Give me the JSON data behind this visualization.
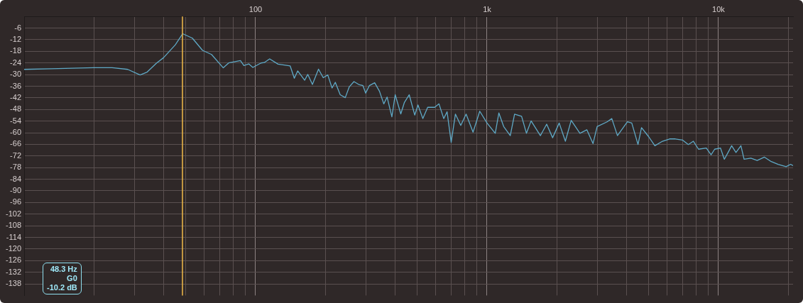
{
  "chart_data": {
    "type": "line",
    "log": "x",
    "grid": true,
    "marker": "none",
    "line_style": "solid",
    "x": [
      10,
      13.1,
      20,
      24,
      28,
      31.7,
      34,
      37.3,
      40,
      45,
      48.4,
      53.3,
      59,
      64.5,
      72.5,
      76.5,
      86,
      89,
      93.4,
      97.3,
      105.6,
      109,
      115,
      125,
      141,
      147,
      152,
      163,
      168,
      176,
      187,
      196,
      205,
      214,
      221,
      232,
      244,
      254,
      266,
      279,
      291,
      299,
      310,
      327,
      343,
      358,
      370,
      388,
      401,
      424,
      439,
      461,
      487,
      503,
      528,
      554,
      594,
      620,
      650,
      672,
      700,
      730,
      770,
      812,
      870,
      930,
      1000,
      1085,
      1125,
      1180,
      1260,
      1315,
      1410,
      1480,
      1550,
      1700,
      1810,
      1920,
      2050,
      2180,
      2310,
      2520,
      2700,
      2870,
      2990,
      3300,
      3460,
      3660,
      4040,
      4220,
      4490,
      4650,
      4990,
      5310,
      5730,
      6150,
      6510,
      7000,
      7410,
      7790,
      8200,
      8860,
      9290,
      9630,
      10200,
      10600,
      11000,
      11400,
      11900,
      12500,
      12900,
      13800,
      14700,
      15800,
      16900,
      18100,
      19600,
      20500,
      21000
    ],
    "series": [
      {
        "color": "#5fa9c6",
        "values": [
          -27.3,
          -27,
          -26.4,
          -26.4,
          -27.3,
          -30.2,
          -28.7,
          -24.1,
          -21.3,
          -14.6,
          -8.9,
          -11.2,
          -17.5,
          -19.6,
          -26.5,
          -24,
          -22.8,
          -25.3,
          -24.5,
          -26.3,
          -24,
          -23.8,
          -21.9,
          -24.6,
          -25.5,
          -31.9,
          -28.1,
          -32.9,
          -29.9,
          -35.1,
          -27.2,
          -31.6,
          -30.2,
          -36.9,
          -34,
          -40.4,
          -41.9,
          -36.3,
          -33.6,
          -35.1,
          -35.7,
          -39.6,
          -35.7,
          -34.2,
          -38.6,
          -45.1,
          -41.6,
          -51.8,
          -40.4,
          -50.3,
          -44.5,
          -40.4,
          -50.9,
          -45.7,
          -52.7,
          -46.9,
          -46.9,
          -45.1,
          -52.7,
          -49.2,
          -65,
          -50.4,
          -56.2,
          -50.4,
          -59.7,
          -48.9,
          -55,
          -60.3,
          -49.8,
          -56.8,
          -61.5,
          -50.4,
          -51.5,
          -60.3,
          -53.9,
          -61.5,
          -55.6,
          -62.6,
          -55,
          -64.4,
          -53.6,
          -60.3,
          -58.5,
          -65.6,
          -56.8,
          -54.4,
          -52.7,
          -61.5,
          -54.4,
          -55,
          -66.1,
          -57.4,
          -62,
          -66.7,
          -64.4,
          -63.2,
          -63.2,
          -63.8,
          -66.1,
          -64.4,
          -68.5,
          -67.9,
          -71.4,
          -68.5,
          -67.9,
          -73.7,
          -70.2,
          -66.7,
          -70.2,
          -66.7,
          -73.7,
          -73.1,
          -74.3,
          -72.6,
          -74.9,
          -76.3,
          -77.5,
          -76.3,
          -77
        ]
      }
    ],
    "xlim": [
      10,
      21000
    ],
    "xticks": [
      {
        "value": 20,
        "label": null
      },
      {
        "value": 30,
        "label": null
      },
      {
        "value": 40,
        "label": null
      },
      {
        "value": 50,
        "label": null
      },
      {
        "value": 60,
        "label": null
      },
      {
        "value": 70,
        "label": null
      },
      {
        "value": 80,
        "label": null
      },
      {
        "value": 90,
        "label": null
      },
      100,
      {
        "value": 200,
        "label": null
      },
      {
        "value": 300,
        "label": null
      },
      {
        "value": 400,
        "label": null
      },
      {
        "value": 500,
        "label": null
      },
      {
        "value": 600,
        "label": null
      },
      {
        "value": 700,
        "label": null
      },
      {
        "value": 800,
        "label": null
      },
      {
        "value": 900,
        "label": null
      },
      {
        "value": 1000,
        "label": "1k"
      },
      {
        "value": 2000,
        "label": null
      },
      {
        "value": 3000,
        "label": null
      },
      {
        "value": 4000,
        "label": null
      },
      {
        "value": 5000,
        "label": null
      },
      {
        "value": 6000,
        "label": null
      },
      {
        "value": 7000,
        "label": null
      },
      {
        "value": 8000,
        "label": null
      },
      {
        "value": 9000,
        "label": null
      },
      {
        "value": 10000,
        "label": "10k"
      },
      {
        "value": 20000,
        "label": null
      }
    ],
    "ylim": [
      -144,
      0
    ],
    "yticks": [
      -6,
      -12,
      -18,
      -24,
      -30,
      -36,
      -42,
      -48,
      -54,
      -60,
      -66,
      -72,
      -78,
      -84,
      -90,
      -96,
      -102,
      -108,
      -114,
      -120,
      -126,
      -132,
      -138
    ],
    "ref_lines": [
      {
        "axis": "x",
        "value": 48.3,
        "color": "#f2bb4a"
      }
    ],
    "annotations": [
      "48.3 Hz",
      "G0",
      "-10.2 dB"
    ]
  }
}
